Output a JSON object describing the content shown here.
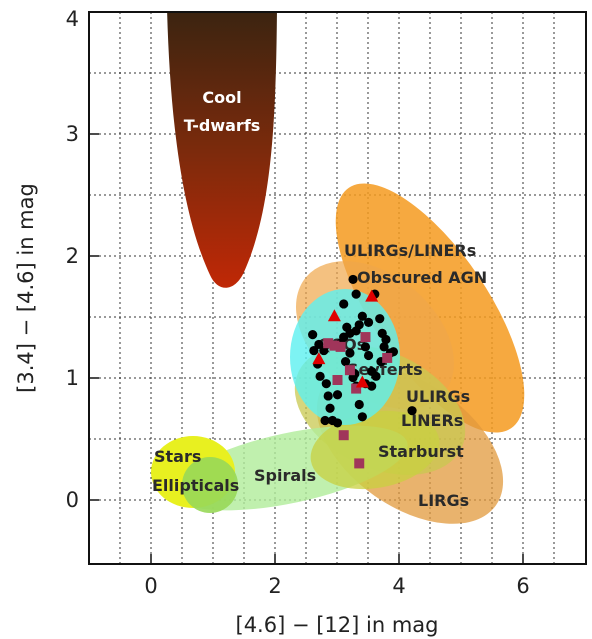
{
  "chart_data": {
    "type": "scatter",
    "xlabel": "[4.6] − [12] in mag",
    "ylabel": "[3.4] − [4.6] in mag",
    "xlim": [
      -1,
      7
    ],
    "ylim": [
      -0.5,
      4
    ],
    "xticks": [
      "0",
      "2",
      "4",
      "6"
    ],
    "yticks": [
      "0",
      "1",
      "2",
      "3",
      "4"
    ],
    "grid": true,
    "regions": [
      {
        "id": "t-dwarfs",
        "lines": [
          "Cool",
          "T-dwarfs"
        ],
        "fill": "#a02808"
      },
      {
        "id": "ulirgs-liners-top",
        "lines": [
          "ULIRGs/LINERs"
        ],
        "fill": "#f49a1e"
      },
      {
        "id": "obscured-agn",
        "lines": [
          "Obscured AGN"
        ],
        "fill": "#f0a64a"
      },
      {
        "id": "lirgs",
        "lines": [
          "LIRGs"
        ],
        "fill": "#e2a850"
      },
      {
        "id": "qsos",
        "lines": [
          "QSOs"
        ],
        "fill": "#66f0f0"
      },
      {
        "id": "seyferts",
        "lines": [
          "Seyferts"
        ],
        "fill": "#66f0f0"
      },
      {
        "id": "ulirgs-liners",
        "lines": [
          "ULIRGs",
          "LINERs"
        ],
        "fill": "#cfcf50"
      },
      {
        "id": "starburst",
        "lines": [
          "Starburst"
        ],
        "fill": "#c8d040"
      },
      {
        "id": "spirals",
        "lines": [
          "Spirals"
        ],
        "fill": "#b8f0a0"
      },
      {
        "id": "stars",
        "lines": [
          "Stars"
        ],
        "fill": "#e8f020"
      },
      {
        "id": "ellipticals",
        "lines": [
          "Ellipticals"
        ],
        "fill": "#a8e060"
      }
    ],
    "series": [
      {
        "marker": "circle",
        "color": "#000000",
        "points": [
          [
            2.6,
            1.37
          ],
          [
            2.7,
            1.29
          ],
          [
            2.62,
            1.24
          ],
          [
            2.68,
            1.13
          ],
          [
            2.72,
            1.03
          ],
          [
            2.78,
            1.24
          ],
          [
            2.82,
            0.97
          ],
          [
            2.85,
            0.87
          ],
          [
            2.88,
            0.77
          ],
          [
            2.8,
            0.67
          ],
          [
            2.92,
            0.67
          ],
          [
            3.0,
            0.65
          ],
          [
            3.05,
            1.3
          ],
          [
            3.1,
            1.35
          ],
          [
            3.15,
            1.43
          ],
          [
            3.2,
            1.38
          ],
          [
            3.3,
            1.4
          ],
          [
            3.35,
            1.45
          ],
          [
            3.4,
            1.52
          ],
          [
            3.5,
            1.47
          ],
          [
            3.45,
            1.27
          ],
          [
            3.5,
            1.2
          ],
          [
            3.55,
            1.07
          ],
          [
            3.45,
            0.97
          ],
          [
            3.2,
            1.22
          ],
          [
            3.25,
            1.02
          ],
          [
            3.3,
            0.95
          ],
          [
            3.35,
            0.8
          ],
          [
            3.4,
            0.7
          ],
          [
            3.55,
            0.95
          ],
          [
            3.62,
            1.03
          ],
          [
            3.7,
            1.15
          ],
          [
            3.75,
            1.27
          ],
          [
            3.72,
            1.38
          ],
          [
            3.68,
            1.5
          ],
          [
            3.78,
            1.33
          ],
          [
            3.85,
            1.22
          ],
          [
            3.9,
            1.23
          ],
          [
            3.28,
            1.05
          ],
          [
            3.13,
            1.15
          ],
          [
            3.1,
            1.62
          ],
          [
            3.3,
            1.7
          ],
          [
            3.6,
            1.7
          ],
          [
            3.25,
            1.82
          ],
          [
            3.0,
            0.88
          ],
          [
            4.2,
            0.75
          ]
        ]
      },
      {
        "marker": "square",
        "color": "#a0355a",
        "points": [
          [
            2.85,
            1.3
          ],
          [
            2.95,
            1.28
          ],
          [
            3.05,
            1.27
          ],
          [
            3.0,
            1.0
          ],
          [
            3.2,
            1.08
          ],
          [
            3.3,
            0.93
          ],
          [
            3.45,
            1.35
          ],
          [
            3.8,
            1.18
          ],
          [
            3.1,
            0.55
          ],
          [
            3.35,
            0.32
          ]
        ]
      },
      {
        "marker": "triangle",
        "color": "#e00000",
        "points": [
          [
            3.55,
            1.68
          ],
          [
            2.95,
            1.52
          ],
          [
            2.7,
            1.17
          ],
          [
            3.4,
            0.98
          ]
        ]
      }
    ]
  }
}
